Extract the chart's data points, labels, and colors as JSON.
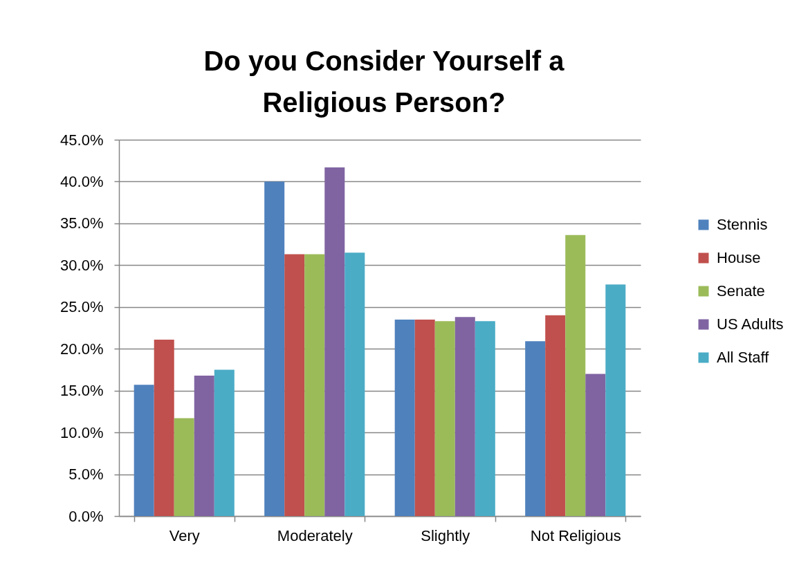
{
  "chart_data": {
    "type": "bar",
    "title": "Do you Consider Yourself a Religious Person?",
    "categories": [
      "Very",
      "Moderately",
      "Slightly",
      "Not Religious"
    ],
    "series": [
      {
        "name": "Stennis",
        "color": "#4f81bd",
        "values": [
          15.7,
          40.0,
          23.5,
          20.9
        ]
      },
      {
        "name": "House",
        "color": "#c0504d",
        "values": [
          21.1,
          31.3,
          23.5,
          24.0
        ]
      },
      {
        "name": "Senate",
        "color": "#9bbb59",
        "values": [
          11.7,
          31.3,
          23.3,
          33.6
        ]
      },
      {
        "name": "US Adults",
        "color": "#8064a2",
        "values": [
          16.8,
          41.7,
          23.8,
          17.0
        ]
      },
      {
        "name": "All Staff",
        "color": "#4bacc6",
        "values": [
          17.5,
          31.5,
          23.3,
          27.7
        ]
      }
    ],
    "ylim": [
      0,
      45
    ],
    "yticks": [
      {
        "value": 0,
        "label": "0.0%"
      },
      {
        "value": 5,
        "label": "5.0%"
      },
      {
        "value": 10,
        "label": "10.0%"
      },
      {
        "value": 15,
        "label": "15.0%"
      },
      {
        "value": 20,
        "label": "20.0%"
      },
      {
        "value": 25,
        "label": "25.0%"
      },
      {
        "value": 30,
        "label": "30.0%"
      },
      {
        "value": 35,
        "label": "35.0%"
      },
      {
        "value": 40,
        "label": "40.0%"
      },
      {
        "value": 45,
        "label": "45.0%"
      }
    ],
    "grid": "y",
    "legend": "right"
  }
}
